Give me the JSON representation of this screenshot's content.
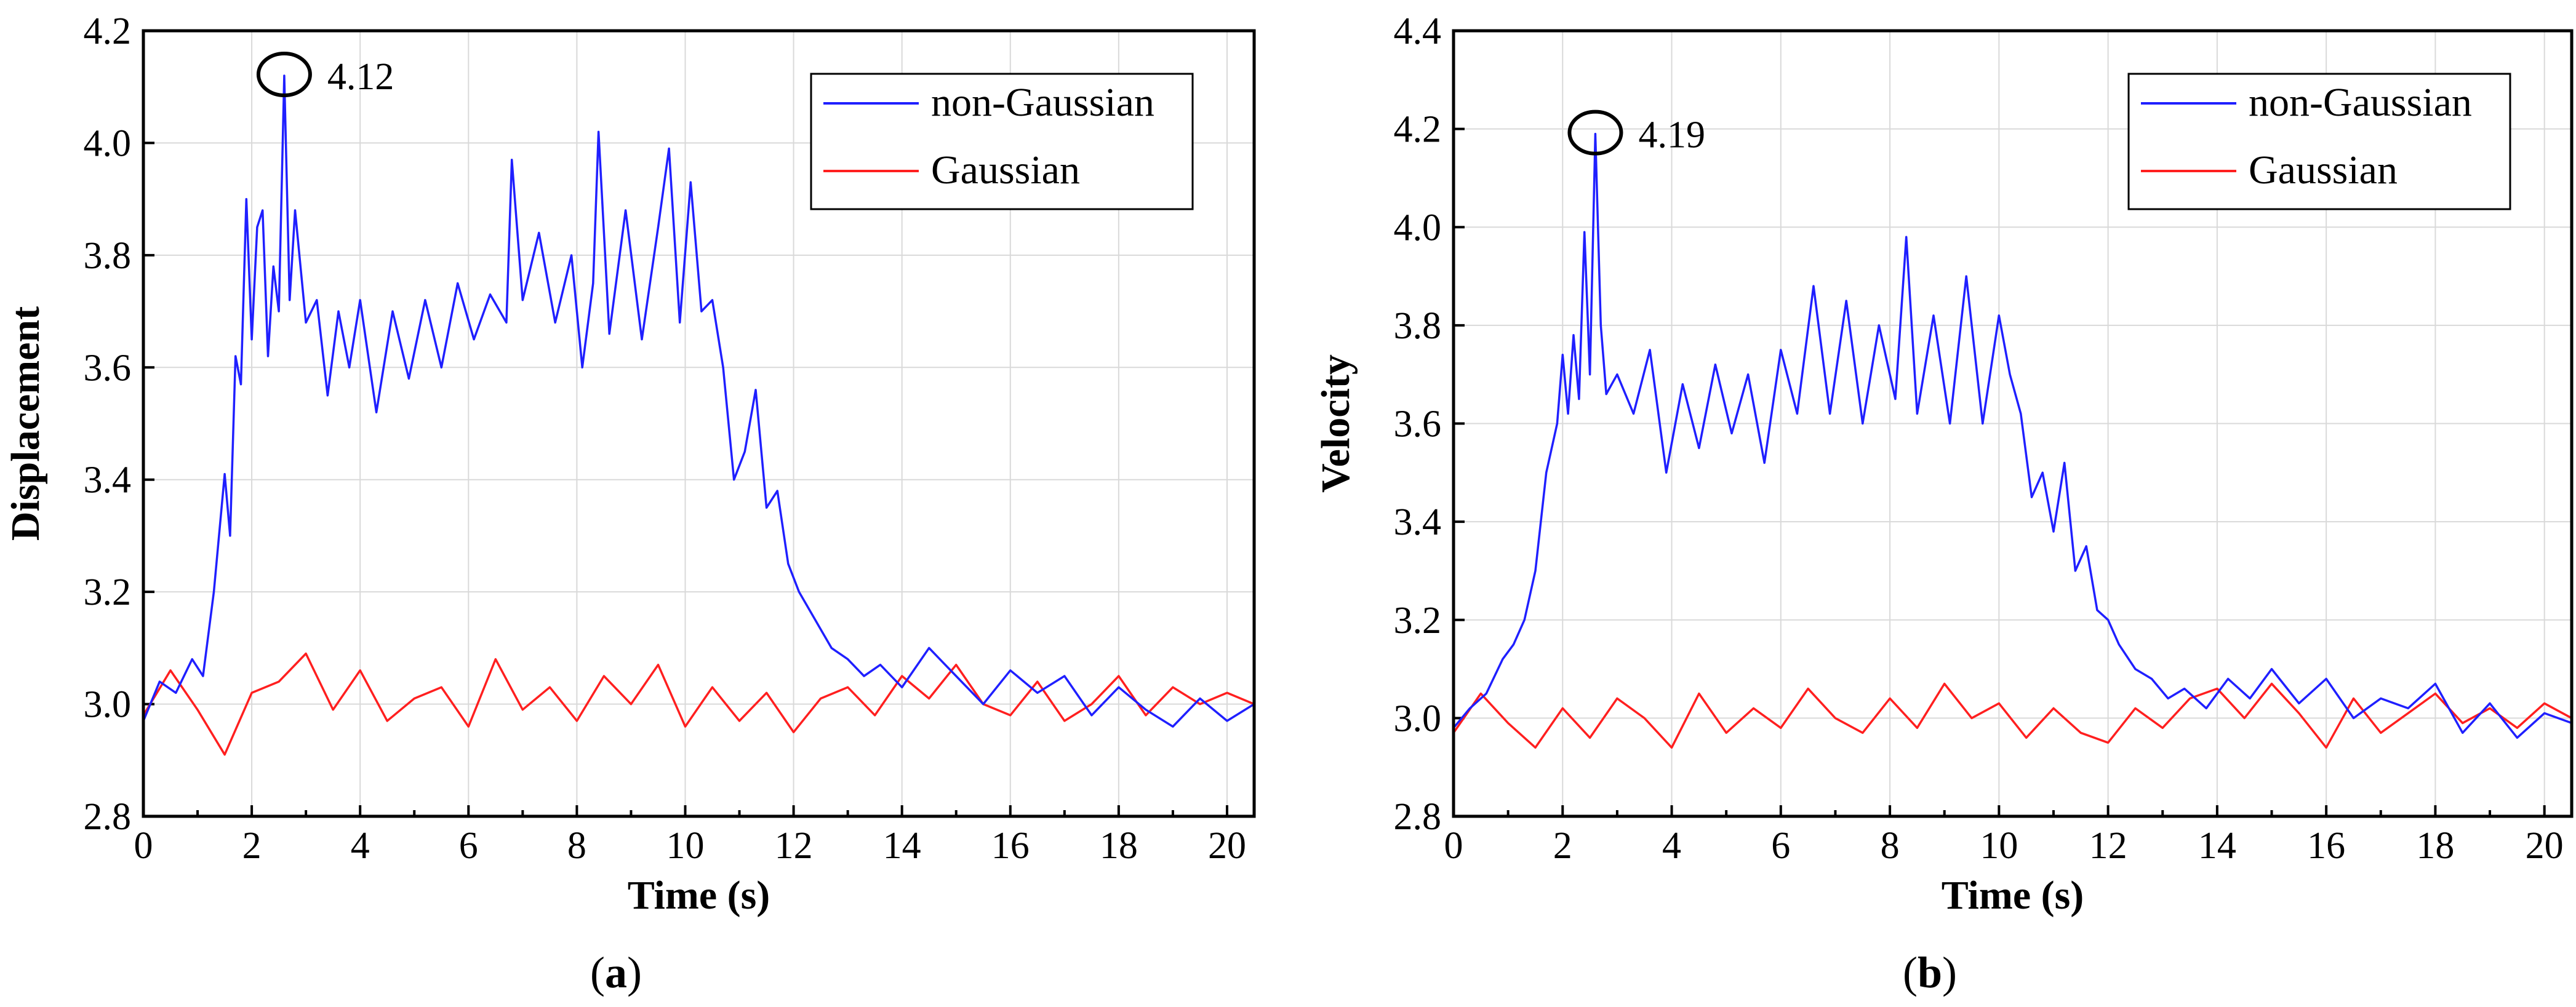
{
  "chart_data": [
    {
      "type": "line",
      "panel_label": "(a)",
      "panel_letter": "a",
      "title": "",
      "xlabel": "Time (s)",
      "ylabel": "Displacement",
      "xlim": [
        0,
        20.5
      ],
      "ylim": [
        2.8,
        4.2
      ],
      "xticks": [
        "0",
        "2",
        "4",
        "6",
        "8",
        "10",
        "12",
        "14",
        "16",
        "18",
        "20"
      ],
      "yticks": [
        "2.8",
        "3.0",
        "3.2",
        "3.4",
        "3.6",
        "3.8",
        "4.0",
        "4.2"
      ],
      "grid": true,
      "legend_position": "top-right",
      "annotation": {
        "text": "4.12",
        "x": 2.6,
        "y": 4.12
      },
      "series": [
        {
          "name": "non-Gaussian",
          "color": "#1f1fff",
          "x": [
            0,
            0.3,
            0.6,
            0.9,
            1.1,
            1.3,
            1.5,
            1.6,
            1.7,
            1.8,
            1.9,
            2.0,
            2.1,
            2.2,
            2.3,
            2.4,
            2.5,
            2.6,
            2.7,
            2.8,
            3.0,
            3.2,
            3.4,
            3.6,
            3.8,
            4.0,
            4.3,
            4.6,
            4.9,
            5.2,
            5.5,
            5.8,
            6.1,
            6.4,
            6.7,
            6.8,
            7.0,
            7.3,
            7.6,
            7.9,
            8.1,
            8.3,
            8.4,
            8.6,
            8.9,
            9.2,
            9.5,
            9.7,
            9.9,
            10.1,
            10.3,
            10.5,
            10.7,
            10.9,
            11.1,
            11.3,
            11.5,
            11.7,
            11.9,
            12.1,
            12.4,
            12.7,
            13.0,
            13.3,
            13.6,
            14.0,
            14.5,
            15.0,
            15.5,
            16.0,
            16.5,
            17.0,
            17.5,
            18.0,
            18.5,
            19.0,
            19.5,
            20.0,
            20.5
          ],
          "y": [
            2.97,
            3.04,
            3.02,
            3.08,
            3.05,
            3.2,
            3.41,
            3.3,
            3.62,
            3.57,
            3.9,
            3.65,
            3.85,
            3.88,
            3.62,
            3.78,
            3.7,
            4.12,
            3.72,
            3.88,
            3.68,
            3.72,
            3.55,
            3.7,
            3.6,
            3.72,
            3.52,
            3.7,
            3.58,
            3.72,
            3.6,
            3.75,
            3.65,
            3.73,
            3.68,
            3.97,
            3.72,
            3.84,
            3.68,
            3.8,
            3.6,
            3.75,
            4.02,
            3.66,
            3.88,
            3.65,
            3.85,
            3.99,
            3.68,
            3.93,
            3.7,
            3.72,
            3.6,
            3.4,
            3.45,
            3.56,
            3.35,
            3.38,
            3.25,
            3.2,
            3.15,
            3.1,
            3.08,
            3.05,
            3.07,
            3.03,
            3.1,
            3.05,
            3.0,
            3.06,
            3.02,
            3.05,
            2.98,
            3.03,
            2.99,
            2.96,
            3.01,
            2.97,
            3.0
          ]
        },
        {
          "name": "Gaussian",
          "color": "#ff1f1f",
          "x": [
            0,
            0.5,
            1,
            1.5,
            2,
            2.5,
            3,
            3.5,
            4,
            4.5,
            5,
            5.5,
            6,
            6.5,
            7,
            7.5,
            8,
            8.5,
            9,
            9.5,
            10,
            10.5,
            11,
            11.5,
            12,
            12.5,
            13,
            13.5,
            14,
            14.5,
            15,
            15.5,
            16,
            16.5,
            17,
            17.5,
            18,
            18.5,
            19,
            19.5,
            20,
            20.5
          ],
          "y": [
            2.98,
            3.06,
            2.99,
            2.91,
            3.02,
            3.04,
            3.09,
            2.99,
            3.06,
            2.97,
            3.01,
            3.03,
            2.96,
            3.08,
            2.99,
            3.03,
            2.97,
            3.05,
            3.0,
            3.07,
            2.96,
            3.03,
            2.97,
            3.02,
            2.95,
            3.01,
            3.03,
            2.98,
            3.05,
            3.01,
            3.07,
            3.0,
            2.98,
            3.04,
            2.97,
            3.0,
            3.05,
            2.98,
            3.03,
            3.0,
            3.02,
            3.0
          ]
        }
      ]
    },
    {
      "type": "line",
      "panel_label": "(b)",
      "panel_letter": "b",
      "title": "",
      "xlabel": "Time (s)",
      "ylabel": "Velocity",
      "xlim": [
        0,
        20.5
      ],
      "ylim": [
        2.8,
        4.4
      ],
      "xticks": [
        "0",
        "2",
        "4",
        "6",
        "8",
        "10",
        "12",
        "14",
        "16",
        "18",
        "20"
      ],
      "yticks": [
        "2.8",
        "3.0",
        "3.2",
        "3.4",
        "3.6",
        "3.8",
        "4.0",
        "4.2",
        "4.4"
      ],
      "grid": true,
      "legend_position": "top-right",
      "annotation": {
        "text": "4.19",
        "x": 2.6,
        "y": 4.19
      },
      "series": [
        {
          "name": "non-Gaussian",
          "color": "#1f1fff",
          "x": [
            0,
            0.3,
            0.6,
            0.9,
            1.1,
            1.3,
            1.5,
            1.7,
            1.9,
            2.0,
            2.1,
            2.2,
            2.3,
            2.4,
            2.5,
            2.6,
            2.7,
            2.8,
            3.0,
            3.3,
            3.6,
            3.9,
            4.2,
            4.5,
            4.8,
            5.1,
            5.4,
            5.7,
            6.0,
            6.3,
            6.6,
            6.9,
            7.2,
            7.5,
            7.8,
            8.1,
            8.3,
            8.5,
            8.8,
            9.1,
            9.4,
            9.7,
            10.0,
            10.2,
            10.4,
            10.6,
            10.8,
            11.0,
            11.2,
            11.4,
            11.6,
            11.8,
            12.0,
            12.2,
            12.5,
            12.8,
            13.1,
            13.4,
            13.8,
            14.2,
            14.6,
            15.0,
            15.5,
            16.0,
            16.5,
            17.0,
            17.5,
            18.0,
            18.5,
            19.0,
            19.5,
            20.0,
            20.5
          ],
          "y": [
            2.98,
            3.02,
            3.05,
            3.12,
            3.15,
            3.2,
            3.3,
            3.5,
            3.6,
            3.74,
            3.62,
            3.78,
            3.65,
            3.99,
            3.7,
            4.19,
            3.8,
            3.66,
            3.7,
            3.62,
            3.75,
            3.5,
            3.68,
            3.55,
            3.72,
            3.58,
            3.7,
            3.52,
            3.75,
            3.62,
            3.88,
            3.62,
            3.85,
            3.6,
            3.8,
            3.65,
            3.98,
            3.62,
            3.82,
            3.6,
            3.9,
            3.6,
            3.82,
            3.7,
            3.62,
            3.45,
            3.5,
            3.38,
            3.52,
            3.3,
            3.35,
            3.22,
            3.2,
            3.15,
            3.1,
            3.08,
            3.04,
            3.06,
            3.02,
            3.08,
            3.04,
            3.1,
            3.03,
            3.08,
            3.0,
            3.04,
            3.02,
            3.07,
            2.97,
            3.03,
            2.96,
            3.01,
            2.99
          ]
        },
        {
          "name": "Gaussian",
          "color": "#ff1f1f",
          "x": [
            0,
            0.5,
            1,
            1.5,
            2,
            2.5,
            3,
            3.5,
            4,
            4.5,
            5,
            5.5,
            6,
            6.5,
            7,
            7.5,
            8,
            8.5,
            9,
            9.5,
            10,
            10.5,
            11,
            11.5,
            12,
            12.5,
            13,
            13.5,
            14,
            14.5,
            15,
            15.5,
            16,
            16.5,
            17,
            17.5,
            18,
            18.5,
            19,
            19.5,
            20,
            20.5
          ],
          "y": [
            2.97,
            3.05,
            2.99,
            2.94,
            3.02,
            2.96,
            3.04,
            3.0,
            2.94,
            3.05,
            2.97,
            3.02,
            2.98,
            3.06,
            3.0,
            2.97,
            3.04,
            2.98,
            3.07,
            3.0,
            3.03,
            2.96,
            3.02,
            2.97,
            2.95,
            3.02,
            2.98,
            3.04,
            3.06,
            3.0,
            3.07,
            3.01,
            2.94,
            3.04,
            2.97,
            3.01,
            3.05,
            2.99,
            3.02,
            2.98,
            3.03,
            3.0
          ]
        }
      ]
    }
  ]
}
